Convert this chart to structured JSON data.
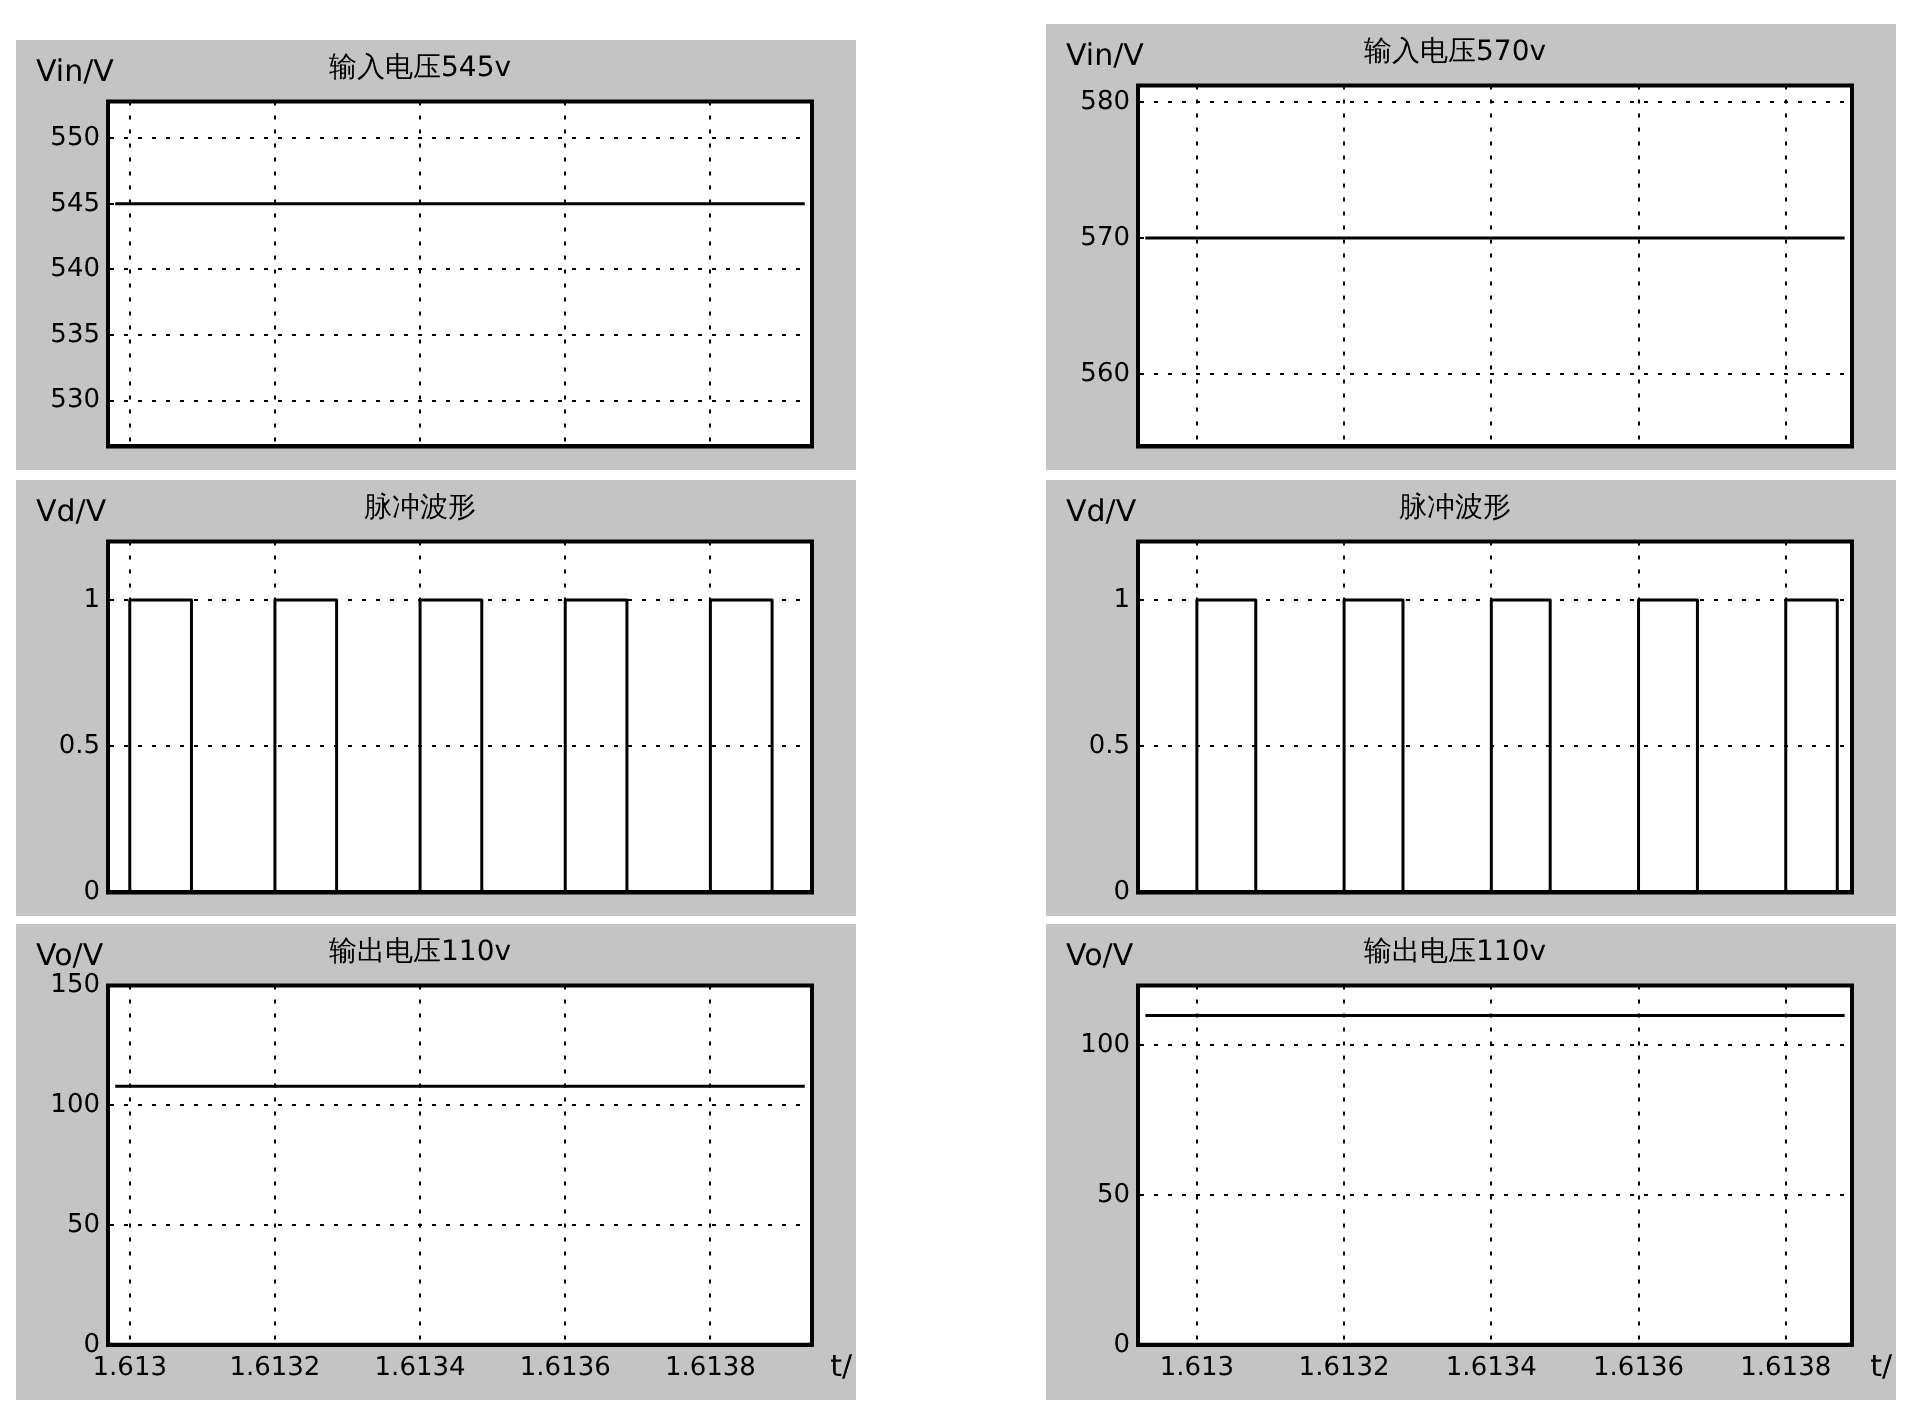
{
  "chart_data": [
    {
      "type": "line",
      "title": "输入电压545v",
      "ylabel": "Vin/V",
      "x": [
        1.61298,
        1.61393
      ],
      "series": [
        {
          "color": "#000000",
          "values": [
            545,
            545
          ]
        }
      ],
      "xlim": [
        1.61297,
        1.61394
      ],
      "xticks": [
        1.613,
        1.6132,
        1.6134,
        1.6136,
        1.6138
      ],
      "ylim": [
        526.5,
        552.8
      ],
      "yticks": [
        530,
        535,
        540,
        545,
        550
      ],
      "grid": true,
      "line_style": "solid",
      "tick_labels": "y"
    },
    {
      "type": "line",
      "title": "脉冲波形",
      "ylabel": "Vd/V",
      "x": [
        1.613,
        1.613,
        1.613085,
        1.613085,
        1.6132,
        1.6132,
        1.613285,
        1.613285,
        1.6134,
        1.6134,
        1.613485,
        1.613485,
        1.6136,
        1.6136,
        1.613685,
        1.613685,
        1.6138,
        1.6138,
        1.613885,
        1.613885
      ],
      "series": [
        {
          "color": "#000000",
          "values": [
            0,
            1,
            1,
            0,
            0,
            1,
            1,
            0,
            0,
            1,
            1,
            0,
            0,
            1,
            1,
            0,
            0,
            1,
            1,
            0
          ]
        }
      ],
      "xlim": [
        1.61297,
        1.61394
      ],
      "xticks": [
        1.613,
        1.6132,
        1.6134,
        1.6136,
        1.6138
      ],
      "ylim": [
        0,
        1.2
      ],
      "yticks": [
        0,
        0.5,
        1
      ],
      "grid": true,
      "line_style": "solid",
      "tick_labels": "y"
    },
    {
      "type": "line",
      "title": "输出电压110v",
      "ylabel": "Vo/V",
      "xlabel": "t/",
      "x": [
        1.61298,
        1.61393
      ],
      "series": [
        {
          "color": "#000000",
          "values": [
            108,
            108
          ]
        }
      ],
      "xlim": [
        1.61297,
        1.61394
      ],
      "xticks": [
        1.613,
        1.6132,
        1.6134,
        1.6136,
        1.6138
      ],
      "ylim": [
        0,
        150
      ],
      "yticks": [
        0,
        50,
        100,
        150
      ],
      "grid": true,
      "line_style": "solid"
    },
    {
      "type": "line",
      "title": "输入电压570v",
      "ylabel": "Vin/V",
      "x": [
        1.61293,
        1.61388
      ],
      "series": [
        {
          "color": "#000000",
          "values": [
            570,
            570
          ]
        }
      ],
      "xlim": [
        1.61292,
        1.61389
      ],
      "xticks": [
        1.613,
        1.6132,
        1.6134,
        1.6136,
        1.6138
      ],
      "ylim": [
        554.7,
        581.2
      ],
      "yticks": [
        560,
        570,
        580
      ],
      "grid": true,
      "line_style": "solid",
      "tick_labels": "y"
    },
    {
      "type": "line",
      "title": "脉冲波形",
      "ylabel": "Vd/V",
      "x": [
        1.613,
        1.613,
        1.61308,
        1.61308,
        1.6132,
        1.6132,
        1.61328,
        1.61328,
        1.6134,
        1.6134,
        1.61348,
        1.61348,
        1.6136,
        1.6136,
        1.61368,
        1.61368,
        1.6138,
        1.6138,
        1.61387,
        1.61387
      ],
      "series": [
        {
          "color": "#000000",
          "values": [
            0,
            1,
            1,
            0,
            0,
            1,
            1,
            0,
            0,
            1,
            1,
            0,
            0,
            1,
            1,
            0,
            0,
            1,
            1,
            0
          ]
        }
      ],
      "xlim": [
        1.61292,
        1.61389
      ],
      "xticks": [
        1.613,
        1.6132,
        1.6134,
        1.6136,
        1.6138
      ],
      "ylim": [
        0,
        1.2
      ],
      "yticks": [
        0,
        0.5,
        1
      ],
      "grid": true,
      "line_style": "solid",
      "tick_labels": "y"
    },
    {
      "type": "line",
      "title": "输出电压110v",
      "ylabel": "Vo/V",
      "xlabel": "t/",
      "x": [
        1.61293,
        1.61388
      ],
      "series": [
        {
          "color": "#000000",
          "values": [
            110,
            110
          ]
        }
      ],
      "xlim": [
        1.61292,
        1.61389
      ],
      "xticks": [
        1.613,
        1.6132,
        1.6134,
        1.6136,
        1.6138
      ],
      "ylim": [
        0,
        120
      ],
      "yticks": [
        0,
        50,
        100
      ],
      "grid": true,
      "line_style": "solid"
    }
  ]
}
